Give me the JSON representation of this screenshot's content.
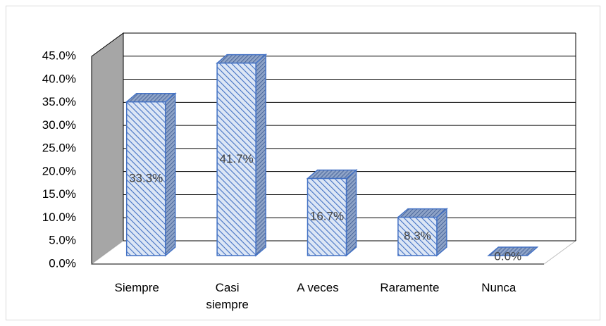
{
  "chart_data": {
    "type": "bar3d",
    "categories": [
      "Siempre",
      "Casi siempre",
      "A veces",
      "Raramente",
      "Nunca"
    ],
    "values": [
      33.3,
      41.7,
      16.7,
      8.3,
      0.0
    ],
    "value_labels": [
      "33.3%",
      "41.7%",
      "16.7%",
      "8.3%",
      "0.0%"
    ],
    "color": "#4472c4",
    "ylim": [
      0,
      45
    ],
    "yticks": [
      {
        "value": 0,
        "label": "0.0%"
      },
      {
        "value": 5,
        "label": "5.0%"
      },
      {
        "value": 10,
        "label": "10.0%"
      },
      {
        "value": 15,
        "label": "15.0%"
      },
      {
        "value": 20,
        "label": "20.0%"
      },
      {
        "value": 25,
        "label": "25.0%"
      },
      {
        "value": 30,
        "label": "30.0%"
      },
      {
        "value": 35,
        "label": "35.0%"
      },
      {
        "value": 40,
        "label": "40.0%"
      },
      {
        "value": 45,
        "label": "45.0%"
      }
    ],
    "grid": true
  }
}
